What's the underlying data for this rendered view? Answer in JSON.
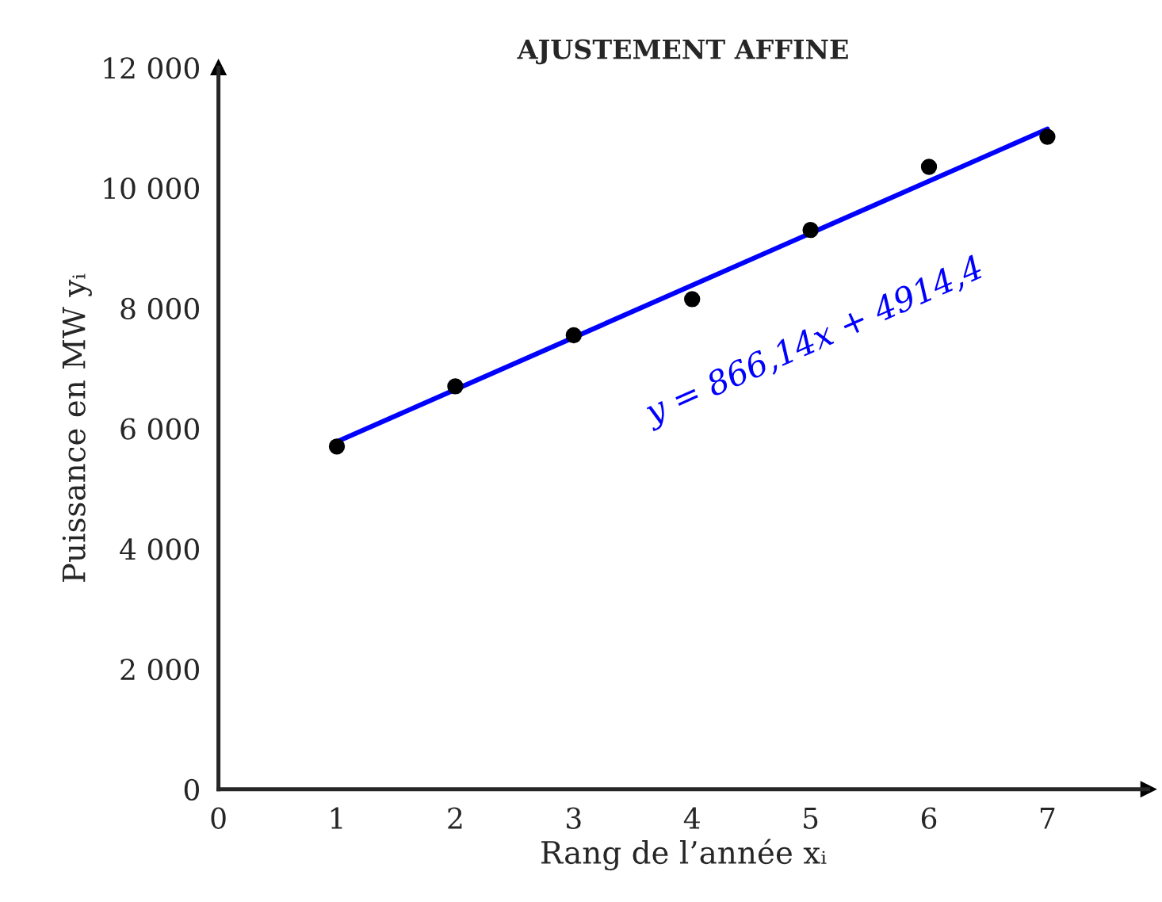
{
  "chart_data": {
    "type": "scatter",
    "title": "AJUSTEMENT AFFINE",
    "xlabel": "Rang de l’année xᵢ",
    "ylabel": "Puissance en MW yᵢ",
    "series": [
      {
        "marker": "circle",
        "color": "#000000",
        "x": [
          1,
          2,
          3,
          4,
          5,
          6,
          7
        ],
        "values": [
          5700,
          6700,
          7550,
          8150,
          9300,
          10350,
          10850
        ]
      },
      {
        "type": "line",
        "marker": "none",
        "color": "#0000ff",
        "x": [
          1,
          7
        ],
        "values": [
          5780,
          10980
        ]
      }
    ],
    "annotations": [
      "y = 866,14x + 4914,4"
    ],
    "xlim": [
      0,
      7.85
    ],
    "ylim": [
      0,
      12000
    ],
    "xticks": [
      0,
      1,
      2,
      3,
      4,
      5,
      6,
      7
    ],
    "yticks": [
      0,
      {
        "value": 2000,
        "label": "2 000"
      },
      {
        "value": 4000,
        "label": "4 000"
      },
      {
        "value": 6000,
        "label": "6 000"
      },
      {
        "value": 8000,
        "label": "8 000"
      },
      {
        "value": 10000,
        "label": "10 000"
      },
      {
        "value": 12000,
        "label": "12 000"
      }
    ],
    "grid": false,
    "legend": false
  }
}
